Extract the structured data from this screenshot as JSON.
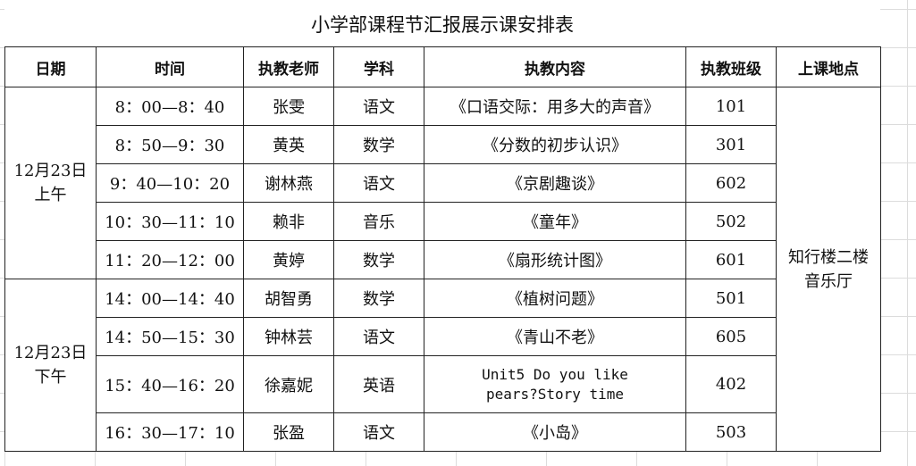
{
  "title": "小学部课程节汇报展示课安排表",
  "headers": [
    "日期",
    "时间",
    "执教老师",
    "学科",
    "执教内容",
    "执教班级",
    "上课地点"
  ],
  "groups": [
    {
      "date_line1": "12月23日",
      "date_line2": "上午"
    },
    {
      "date_line1": "12月23日",
      "date_line2": "下午"
    }
  ],
  "location_line1": "知行楼二楼",
  "location_line2": "音乐厅",
  "rows": [
    {
      "time": "8：00—8：40",
      "teacher": "张雯",
      "subject": "语文",
      "content": "《口语交际：用多大的声音》",
      "class": "101"
    },
    {
      "time": "8：50—9：30",
      "teacher": "黄英",
      "subject": "数学",
      "content": "《分数的初步认识》",
      "class": "301"
    },
    {
      "time": "9：40—10：20",
      "teacher": "谢林燕",
      "subject": "语文",
      "content": "《京剧趣谈》",
      "class": "602"
    },
    {
      "time": "10：30—11：10",
      "teacher": "赖非",
      "subject": "音乐",
      "content": "《童年》",
      "class": "502"
    },
    {
      "time": "11：20—12：00",
      "teacher": "黄婷",
      "subject": "数学",
      "content": "《扇形统计图》",
      "class": "601"
    },
    {
      "time": "14：00—14：40",
      "teacher": "胡智勇",
      "subject": "数学",
      "content": "《植树问题》",
      "class": "501"
    },
    {
      "time": "14：50—15：30",
      "teacher": "钟林芸",
      "subject": "语文",
      "content": "《青山不老》",
      "class": "605"
    },
    {
      "time": "15：40—16：20",
      "teacher": "徐嘉妮",
      "subject": "英语",
      "content_line1": "Unit5 Do you like",
      "content_line2": "pears?Story time",
      "class": "402"
    },
    {
      "time": "16：30—17：10",
      "teacher": "张盈",
      "subject": "语文",
      "content": "《小岛》",
      "class": "503"
    }
  ]
}
